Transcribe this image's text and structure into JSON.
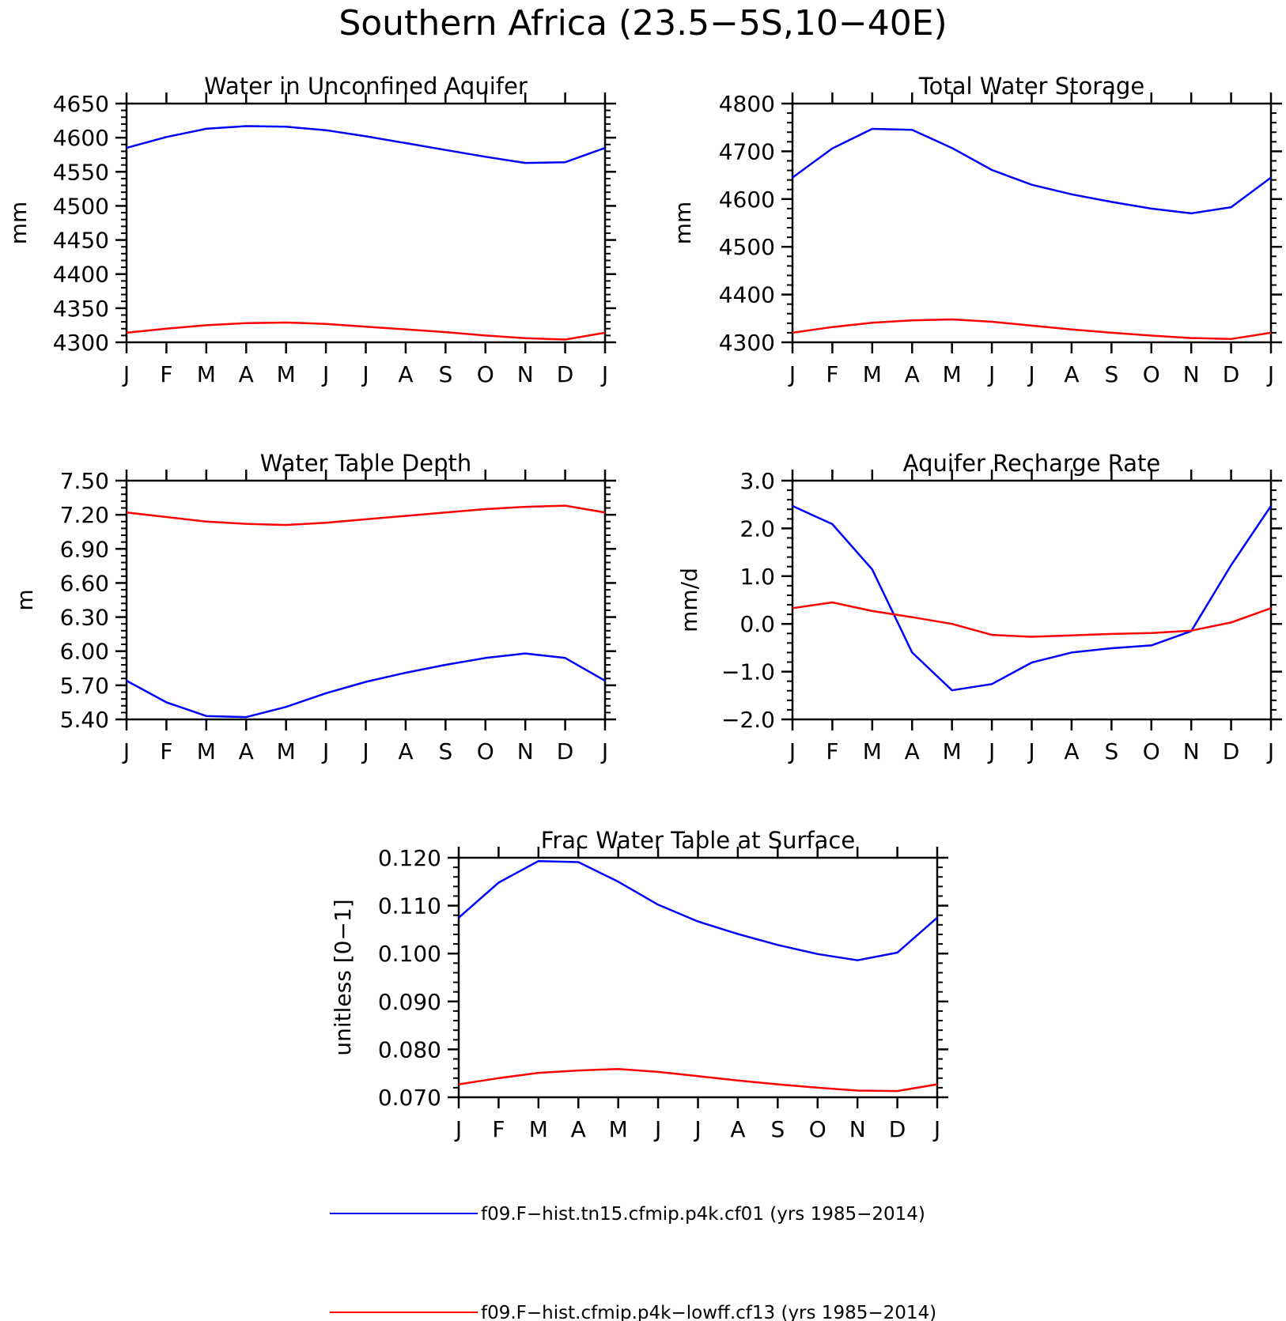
{
  "figure": {
    "title": "Southern Africa (23.5−5S,10−40E)"
  },
  "legend": [
    {
      "label": "f09.F−hist.tn15.cfmip.p4k.cf01 (yrs 1985−2014)",
      "color": "#0000ff"
    },
    {
      "label": "f09.F−hist.cfmip.p4k−lowff.cf13 (yrs 1985−2014)",
      "color": "#ff0000"
    }
  ],
  "chart_data": [
    {
      "type": "line",
      "title": "Water in Unconfined Aquifer",
      "ylabel": "mm",
      "xlabel": "",
      "x": [
        "J",
        "F",
        "M",
        "A",
        "M",
        "J",
        "J",
        "A",
        "S",
        "O",
        "N",
        "D",
        "J"
      ],
      "ylim": [
        4300,
        4650
      ],
      "yticks": [
        "4300",
        "4350",
        "4400",
        "4450",
        "4500",
        "4550",
        "4600",
        "4650"
      ],
      "series": [
        {
          "color": "#0000ff",
          "values": [
            4585,
            4601,
            4613,
            4617,
            4616,
            4611,
            4602,
            4592,
            4582,
            4572,
            4563,
            4564,
            4585
          ]
        },
        {
          "color": "#ff0000",
          "values": [
            4314,
            4320,
            4325,
            4328,
            4329,
            4327,
            4323,
            4319,
            4315,
            4310,
            4306,
            4304,
            4314
          ]
        }
      ]
    },
    {
      "type": "line",
      "title": "Total Water Storage",
      "ylabel": "mm",
      "xlabel": "",
      "x": [
        "J",
        "F",
        "M",
        "A",
        "M",
        "J",
        "J",
        "A",
        "S",
        "O",
        "N",
        "D",
        "J"
      ],
      "ylim": [
        4300,
        4800
      ],
      "yticks": [
        "4300",
        "4400",
        "4500",
        "4600",
        "4700",
        "4800"
      ],
      "series": [
        {
          "color": "#0000ff",
          "values": [
            4645,
            4706,
            4747,
            4745,
            4707,
            4661,
            4630,
            4610,
            4594,
            4580,
            4570,
            4583,
            4645
          ]
        },
        {
          "color": "#ff0000",
          "values": [
            4320,
            4332,
            4341,
            4346,
            4348,
            4343,
            4335,
            4327,
            4320,
            4314,
            4309,
            4307,
            4320
          ]
        }
      ]
    },
    {
      "type": "line",
      "title": "Water Table Depth",
      "ylabel": "m",
      "xlabel": "",
      "x": [
        "J",
        "F",
        "M",
        "A",
        "M",
        "J",
        "J",
        "A",
        "S",
        "O",
        "N",
        "D",
        "J"
      ],
      "ylim": [
        5.4,
        7.5
      ],
      "yticks": [
        "5.40",
        "5.70",
        "6.00",
        "6.30",
        "6.60",
        "6.90",
        "7.20",
        "7.50"
      ],
      "series": [
        {
          "color": "#0000ff",
          "values": [
            5.74,
            5.55,
            5.43,
            5.42,
            5.51,
            5.63,
            5.73,
            5.81,
            5.88,
            5.94,
            5.98,
            5.94,
            5.74
          ]
        },
        {
          "color": "#ff0000",
          "values": [
            7.22,
            7.18,
            7.14,
            7.12,
            7.11,
            7.13,
            7.16,
            7.19,
            7.22,
            7.25,
            7.27,
            7.28,
            7.22
          ]
        }
      ]
    },
    {
      "type": "line",
      "title": "Aquifer Recharge Rate",
      "ylabel": "mm/d",
      "xlabel": "",
      "x": [
        "J",
        "F",
        "M",
        "A",
        "M",
        "J",
        "J",
        "A",
        "S",
        "O",
        "N",
        "D",
        "J"
      ],
      "ylim": [
        -2.0,
        3.0
      ],
      "yticks": [
        "−2.0",
        "−1.0",
        "0.0",
        "1.0",
        "2.0",
        "3.0"
      ],
      "series": [
        {
          "color": "#0000ff",
          "values": [
            2.47,
            2.09,
            1.14,
            -0.6,
            -1.39,
            -1.26,
            -0.81,
            -0.6,
            -0.51,
            -0.45,
            -0.15,
            1.23,
            2.47
          ]
        },
        {
          "color": "#ff0000",
          "values": [
            0.33,
            0.45,
            0.27,
            0.14,
            0.0,
            -0.23,
            -0.27,
            -0.24,
            -0.21,
            -0.19,
            -0.14,
            0.03,
            0.33
          ]
        }
      ]
    },
    {
      "type": "line",
      "title": "Frac Water Table at Surface",
      "ylabel": "unitless [0−1]",
      "xlabel": "",
      "x": [
        "J",
        "F",
        "M",
        "A",
        "M",
        "J",
        "J",
        "A",
        "S",
        "O",
        "N",
        "D",
        "J"
      ],
      "ylim": [
        0.07,
        0.12
      ],
      "yticks": [
        "0.070",
        "0.080",
        "0.090",
        "0.100",
        "0.110",
        "0.120"
      ],
      "series": [
        {
          "color": "#0000ff",
          "values": [
            0.1075,
            0.1148,
            0.1193,
            0.1191,
            0.115,
            0.1102,
            0.1067,
            0.1041,
            0.1018,
            0.0999,
            0.0986,
            0.1002,
            0.1075
          ]
        },
        {
          "color": "#ff0000",
          "values": [
            0.0727,
            0.074,
            0.0751,
            0.0756,
            0.0759,
            0.0753,
            0.0744,
            0.0735,
            0.0727,
            0.072,
            0.0714,
            0.0713,
            0.0727
          ]
        }
      ]
    }
  ]
}
